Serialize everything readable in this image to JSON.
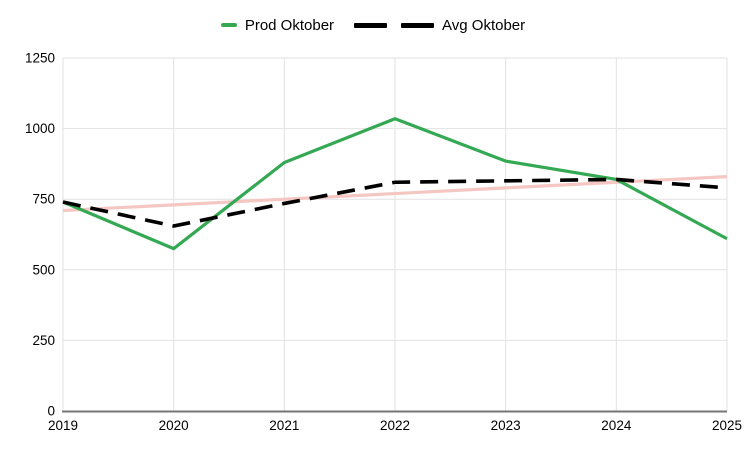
{
  "chart_data": {
    "type": "line",
    "title": "",
    "xlabel": "",
    "ylabel": "",
    "categories": [
      "2019",
      "2020",
      "2021",
      "2022",
      "2023",
      "2024",
      "2025"
    ],
    "series": [
      {
        "name": "Prod Oktober",
        "color": "#34a853",
        "dash": false,
        "values": [
          740,
          575,
          880,
          1035,
          885,
          820,
          610
        ]
      },
      {
        "name": "Avg Oktober",
        "color": "#000000",
        "dash": true,
        "values": [
          740,
          655,
          735,
          810,
          815,
          820,
          790
        ]
      }
    ],
    "trendline": {
      "name": "trendline",
      "color": "#f4c7c3",
      "values": [
        710,
        730,
        750,
        770,
        790,
        810,
        830
      ]
    },
    "ylim": [
      0,
      1250
    ],
    "y_ticks": [
      0,
      250,
      500,
      750,
      1000,
      1250
    ],
    "grid": true,
    "legend_position": "top",
    "axis_color": "#757575",
    "gridline_color": "#e2e2e2",
    "tick_label_color": "#000000"
  }
}
